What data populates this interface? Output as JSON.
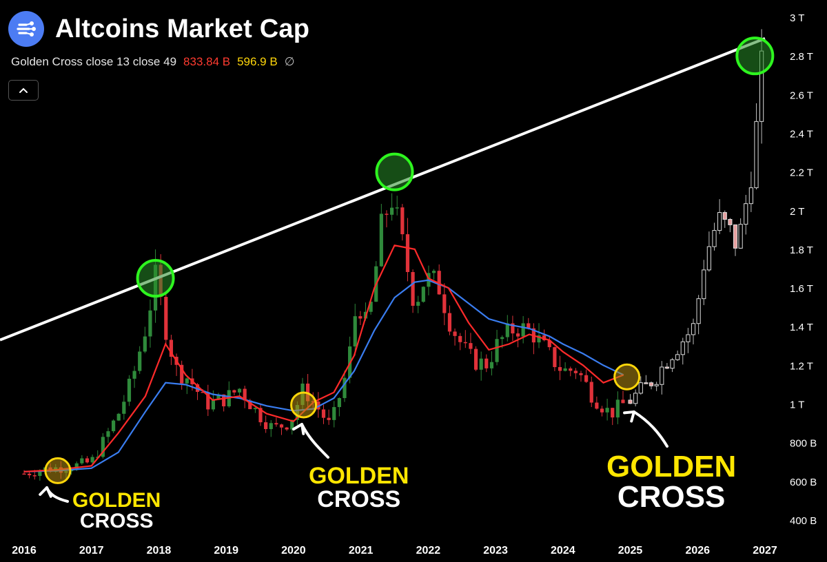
{
  "header": {
    "title": "Altcoins Market Cap",
    "indicator_label": "Golden Cross close 13 close 49",
    "indicator_value_fast": "833.84 B",
    "indicator_value_slow": "596.9 B",
    "indicator_symbol": "∅"
  },
  "annotations": [
    {
      "line1": "GOLDEN",
      "line2": "CROSS"
    },
    {
      "line1": "GOLDEN",
      "line2": "CROSS"
    },
    {
      "line1": "GOLDEN",
      "line2": "CROSS"
    }
  ],
  "colors": {
    "up": "#2f8a3b",
    "down": "#e0323a",
    "projection": "#ffffff",
    "ma_fast": "#ff2a2a",
    "ma_slow": "#3a7df0",
    "peak_circle": "#2ef51f",
    "cross_circle": "#ffd60a",
    "trendline": "#ffffff",
    "logo": "#4c7cf3"
  },
  "chart_data": {
    "type": "candlestick",
    "title": "Altcoins Market Cap",
    "x_ticks": [
      "2016",
      "2017",
      "2018",
      "2019",
      "2020",
      "2021",
      "2022",
      "2023",
      "2024",
      "2025",
      "2026",
      "2027"
    ],
    "y_ticks": [
      "400 B",
      "600 B",
      "800 B",
      "1 T",
      "1.2 T",
      "1.4 T",
      "1.6 T",
      "1.8 T",
      "2 T",
      "2.2 T",
      "2.4 T",
      "2.6 T",
      "2.8 T",
      "3 T"
    ],
    "y_tick_values": [
      400,
      600,
      800,
      1000,
      1200,
      1400,
      1600,
      1800,
      2000,
      2200,
      2400,
      2600,
      2800,
      3000
    ],
    "ylim": [
      400,
      3000
    ],
    "xlim": [
      2016.0,
      2027.0
    ],
    "units": "billions USD",
    "series": [
      {
        "name": "close 13",
        "values": [
          [
            2016.0,
            650
          ],
          [
            2016.5,
            660
          ],
          [
            2017.0,
            680
          ],
          [
            2017.4,
            850
          ],
          [
            2017.8,
            1040
          ],
          [
            2018.1,
            1310
          ],
          [
            2018.4,
            1150
          ],
          [
            2018.8,
            1020
          ],
          [
            2019.2,
            1040
          ],
          [
            2019.6,
            950
          ],
          [
            2020.0,
            910
          ],
          [
            2020.3,
            1010
          ],
          [
            2020.6,
            1060
          ],
          [
            2020.9,
            1250
          ],
          [
            2021.2,
            1600
          ],
          [
            2021.5,
            1820
          ],
          [
            2021.8,
            1800
          ],
          [
            2022.0,
            1650
          ],
          [
            2022.3,
            1600
          ],
          [
            2022.6,
            1420
          ],
          [
            2022.9,
            1280
          ],
          [
            2023.2,
            1310
          ],
          [
            2023.5,
            1360
          ],
          [
            2023.8,
            1330
          ],
          [
            2024.0,
            1270
          ],
          [
            2024.3,
            1200
          ],
          [
            2024.6,
            1110
          ],
          [
            2024.9,
            1150
          ]
        ]
      },
      {
        "name": "close 49",
        "values": [
          [
            2016.0,
            650
          ],
          [
            2016.5,
            655
          ],
          [
            2017.0,
            668
          ],
          [
            2017.4,
            750
          ],
          [
            2017.8,
            960
          ],
          [
            2018.1,
            1110
          ],
          [
            2018.4,
            1100
          ],
          [
            2018.8,
            1050
          ],
          [
            2019.2,
            1030
          ],
          [
            2019.6,
            990
          ],
          [
            2020.0,
            965
          ],
          [
            2020.3,
            975
          ],
          [
            2020.6,
            1030
          ],
          [
            2020.9,
            1170
          ],
          [
            2021.2,
            1380
          ],
          [
            2021.5,
            1550
          ],
          [
            2021.8,
            1630
          ],
          [
            2022.0,
            1640
          ],
          [
            2022.3,
            1600
          ],
          [
            2022.6,
            1520
          ],
          [
            2022.9,
            1440
          ],
          [
            2023.2,
            1410
          ],
          [
            2023.5,
            1390
          ],
          [
            2023.8,
            1350
          ],
          [
            2024.0,
            1310
          ],
          [
            2024.3,
            1260
          ],
          [
            2024.6,
            1200
          ],
          [
            2024.9,
            1150
          ]
        ]
      },
      {
        "name": "trendline",
        "values": [
          [
            2016.0,
            1380
          ],
          [
            2027.0,
            2890
          ]
        ]
      }
    ],
    "candles_actual_close_path": [
      [
        2016.0,
        640
      ],
      [
        2016.25,
        660
      ],
      [
        2016.5,
        670
      ],
      [
        2016.75,
        680
      ],
      [
        2017.0,
        700
      ],
      [
        2017.2,
        820
      ],
      [
        2017.4,
        950
      ],
      [
        2017.6,
        1120
      ],
      [
        2017.8,
        1390
      ],
      [
        2017.95,
        1650
      ],
      [
        2018.1,
        1400
      ],
      [
        2018.25,
        1180
      ],
      [
        2018.45,
        1130
      ],
      [
        2018.7,
        1000
      ],
      [
        2019.0,
        1030
      ],
      [
        2019.2,
        1080
      ],
      [
        2019.45,
        960
      ],
      [
        2019.7,
        870
      ],
      [
        2019.95,
        910
      ],
      [
        2020.15,
        1080
      ],
      [
        2020.4,
        960
      ],
      [
        2020.55,
        880
      ],
      [
        2020.8,
        1180
      ],
      [
        2020.95,
        1550
      ],
      [
        2021.1,
        1380
      ],
      [
        2021.3,
        1900
      ],
      [
        2021.45,
        2080
      ],
      [
        2021.6,
        1850
      ],
      [
        2021.8,
        1520
      ],
      [
        2021.95,
        1650
      ],
      [
        2022.15,
        1620
      ],
      [
        2022.35,
        1400
      ],
      [
        2022.6,
        1240
      ],
      [
        2022.85,
        1200
      ],
      [
        2023.05,
        1320
      ],
      [
        2023.3,
        1400
      ],
      [
        2023.55,
        1370
      ],
      [
        2023.8,
        1250
      ],
      [
        2024.0,
        1170
      ],
      [
        2024.2,
        1180
      ],
      [
        2024.45,
        1040
      ],
      [
        2024.7,
        950
      ],
      [
        2024.9,
        1000
      ]
    ],
    "candles_projection_close_path": [
      [
        2025.0,
        1020
      ],
      [
        2025.2,
        1080
      ],
      [
        2025.4,
        1150
      ],
      [
        2025.6,
        1260
      ],
      [
        2025.8,
        1340
      ],
      [
        2025.95,
        1400
      ],
      [
        2026.1,
        1750
      ],
      [
        2026.3,
        1950
      ],
      [
        2026.45,
        1900
      ],
      [
        2026.6,
        1820
      ],
      [
        2026.75,
        2100
      ],
      [
        2026.9,
        2490
      ],
      [
        2026.97,
        2800
      ]
    ],
    "peak_markers": [
      [
        2017.95,
        1650
      ],
      [
        2021.5,
        2200
      ],
      [
        2026.85,
        2800
      ]
    ],
    "golden_cross_markers": [
      [
        2016.5,
        655
      ],
      [
        2020.15,
        995
      ],
      [
        2024.95,
        1140
      ]
    ]
  }
}
